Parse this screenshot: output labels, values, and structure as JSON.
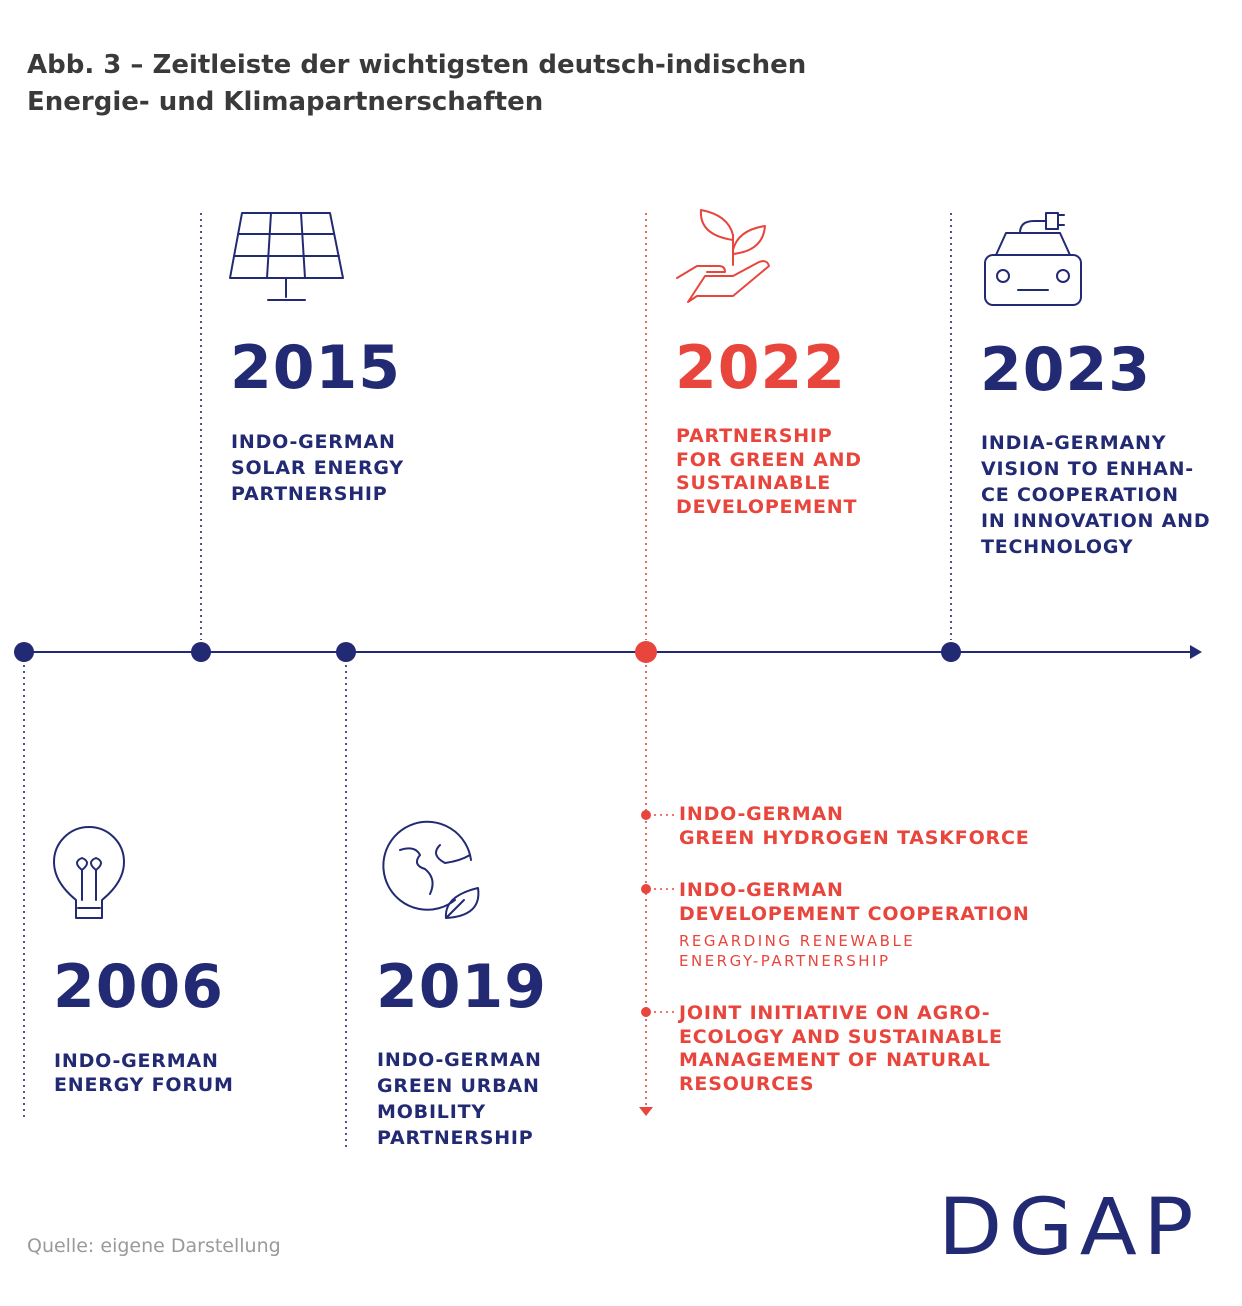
{
  "title": [
    "Abb. 3 – Zeitleiste der wichtigsten deutsch-indischen",
    "Energie- und Klimapartnerschaften"
  ],
  "events": [
    {
      "year": "2006",
      "label": [
        "INDO-GERMAN",
        "ENERGY FORUM"
      ]
    },
    {
      "year": "2015",
      "label": [
        "INDO-GERMAN",
        "SOLAR ENERGY",
        "PARTNERSHIP"
      ]
    },
    {
      "year": "2019",
      "label": [
        "INDO-GERMAN",
        "GREEN URBAN",
        "MOBILITY",
        "PARTNERSHIP"
      ]
    },
    {
      "year": "2022",
      "label": [
        "PARTNERSHIP",
        "FOR GREEN AND",
        "SUSTAINABLE",
        "DEVELOPEMENT"
      ],
      "items": [
        {
          "label": [
            "INDO-GERMAN",
            "GREEN HYDROGEN TASKFORCE"
          ]
        },
        {
          "label": [
            "INDO-GERMAN",
            "DEVELOPEMENT COOPERATION"
          ],
          "note": [
            "REGARDING RENEWABLE",
            "ENERGY-PARTNERSHIP"
          ]
        },
        {
          "label": [
            "JOINT INITIATIVE ON AGRO-",
            "ECOLOGY AND SUSTAINABLE",
            "MANAGEMENT OF NATURAL",
            "RESOURCES"
          ]
        }
      ]
    },
    {
      "year": "2023",
      "label": [
        "INDIA-GERMANY",
        "VISION TO ENHAN-",
        "CE COOPERATION",
        "IN INNOVATION AND",
        "TECHNOLOGY"
      ]
    }
  ],
  "source": "Quelle: eigene Darstellung",
  "logo": "DGAP"
}
